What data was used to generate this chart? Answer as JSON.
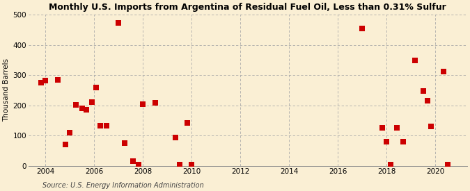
{
  "title": "Monthly U.S. Imports from Argentina of Residual Fuel Oil, Less than 0.31% Sulfur",
  "ylabel": "Thousand Barrels",
  "source": "Source: U.S. Energy Information Administration",
  "background_color": "#faefd4",
  "plot_bg_color": "#faefd4",
  "marker_color": "#cc0000",
  "marker_size": 30,
  "xlim": [
    2003.3,
    2021.3
  ],
  "ylim": [
    0,
    500
  ],
  "yticks": [
    0,
    100,
    200,
    300,
    400,
    500
  ],
  "xticks": [
    2004,
    2006,
    2008,
    2010,
    2012,
    2014,
    2016,
    2018,
    2020
  ],
  "data_x": [
    2003.83,
    2004.0,
    2004.5,
    2004.83,
    2005.0,
    2005.25,
    2005.5,
    2005.67,
    2005.92,
    2006.08,
    2006.25,
    2006.5,
    2007.0,
    2007.25,
    2007.58,
    2007.83,
    2008.0,
    2008.5,
    2009.33,
    2009.5,
    2009.83,
    2010.0,
    2017.0,
    2017.83,
    2018.0,
    2018.17,
    2018.42,
    2018.67,
    2019.17,
    2019.5,
    2019.67,
    2019.83,
    2020.33,
    2020.5
  ],
  "data_y": [
    275,
    283,
    285,
    70,
    110,
    202,
    190,
    185,
    210,
    258,
    133,
    132,
    473,
    75,
    15,
    5,
    205,
    208,
    93,
    5,
    143,
    5,
    455,
    125,
    80,
    5,
    125,
    80,
    348,
    248,
    215,
    130,
    312,
    5
  ]
}
